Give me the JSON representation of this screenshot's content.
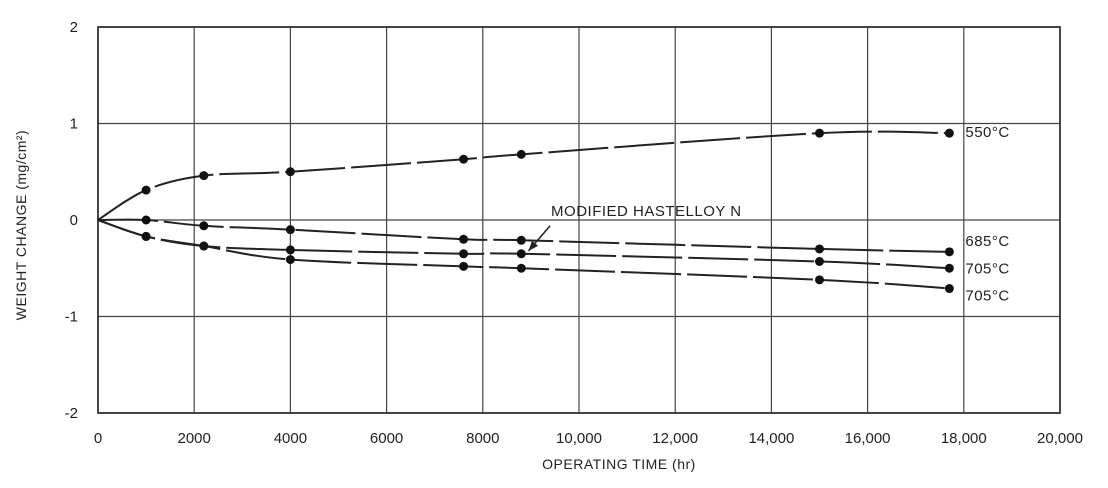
{
  "chart_data": {
    "type": "line",
    "xlabel": "OPERATING TIME (hr)",
    "ylabel": "WEIGHT CHANGE (mg/cm²)",
    "xlim": [
      0,
      20000
    ],
    "ylim": [
      -2,
      2
    ],
    "x_ticks": [
      0,
      2000,
      4000,
      6000,
      8000,
      10000,
      12000,
      14000,
      16000,
      18000,
      20000
    ],
    "x_tick_labels": [
      "0",
      "2000",
      "4000",
      "6000",
      "8000",
      "10,000",
      "12,000",
      "14,000",
      "16,000",
      "18,000",
      "20,000"
    ],
    "y_ticks": [
      2,
      1,
      0,
      -1,
      -2
    ],
    "y_tick_labels": [
      "2",
      "1",
      "0",
      "-1",
      "-2"
    ],
    "grid": true,
    "annotation": "MODIFIED HASTELLOY N",
    "series": [
      {
        "name": "550°C",
        "x": [
          0,
          1000,
          2200,
          4000,
          7600,
          8800,
          15000,
          17700
        ],
        "y": [
          0,
          0.31,
          0.46,
          0.5,
          0.63,
          0.68,
          0.9,
          0.9
        ]
      },
      {
        "name": "685°C",
        "x": [
          0,
          1000,
          2200,
          4000,
          7600,
          8800,
          15000,
          17700
        ],
        "y": [
          0,
          0.0,
          -0.06,
          -0.1,
          -0.2,
          -0.21,
          -0.3,
          -0.33
        ]
      },
      {
        "name": "705°C",
        "x": [
          0,
          1000,
          2200,
          4000,
          7600,
          8800,
          15000,
          17700
        ],
        "y": [
          0,
          -0.17,
          -0.27,
          -0.31,
          -0.35,
          -0.35,
          -0.43,
          -0.5
        ]
      },
      {
        "name": "705°C",
        "x": [
          0,
          1000,
          2200,
          4000,
          7600,
          8800,
          15000,
          17700
        ],
        "y": [
          0,
          -0.17,
          -0.27,
          -0.41,
          -0.48,
          -0.5,
          -0.62,
          -0.71
        ]
      }
    ]
  }
}
